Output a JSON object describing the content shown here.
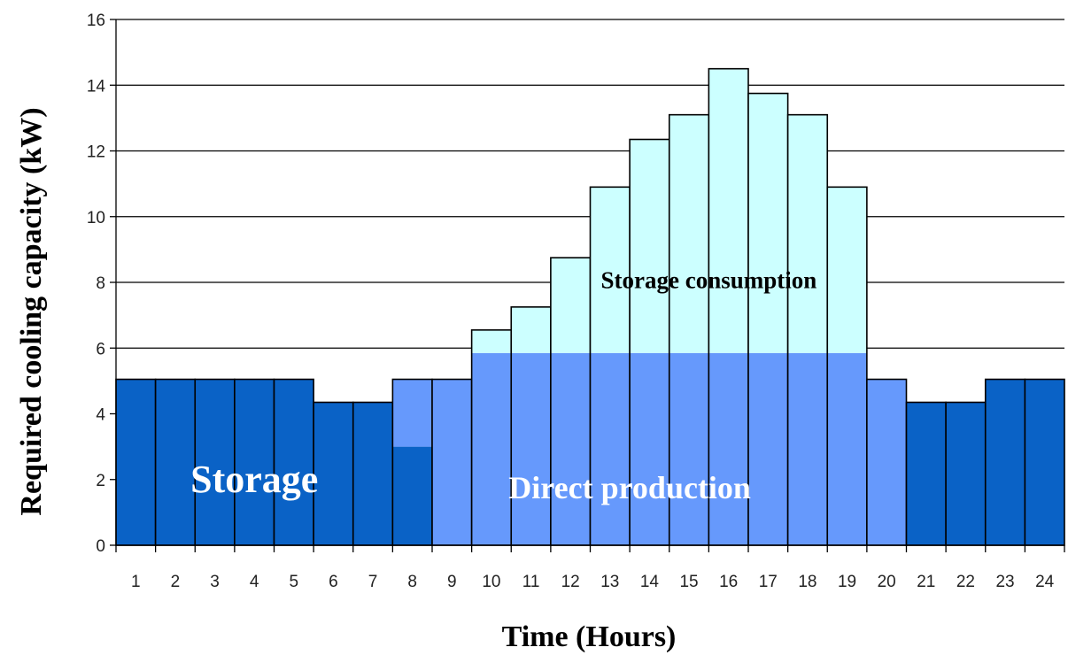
{
  "chart_data": {
    "type": "bar",
    "title": "",
    "xlabel": "Time (Hours)",
    "ylabel": "Required cooling capacity (kW)",
    "ylim": [
      0,
      16
    ],
    "yticks": [
      "0",
      "2",
      "4",
      "6",
      "8",
      "10",
      "12",
      "14",
      "16"
    ],
    "categories": [
      "1",
      "2",
      "3",
      "4",
      "5",
      "6",
      "7",
      "8",
      "9",
      "10",
      "11",
      "12",
      "13",
      "14",
      "15",
      "16",
      "17",
      "18",
      "19",
      "20",
      "21",
      "22",
      "23",
      "24"
    ],
    "series": [
      {
        "name": "Storage",
        "values": [
          5.05,
          5.05,
          5.05,
          5.05,
          5.05,
          4.35,
          4.35,
          3.0,
          0,
          0,
          0,
          0,
          0,
          0,
          0,
          0,
          0,
          0,
          0,
          0,
          4.35,
          4.35,
          5.05,
          5.05
        ]
      },
      {
        "name": "Direct production",
        "values": [
          0,
          0,
          0,
          0,
          0,
          0,
          0,
          2.05,
          5.05,
          5.85,
          5.85,
          5.85,
          5.85,
          5.85,
          5.85,
          5.85,
          5.85,
          5.85,
          5.85,
          5.05,
          0,
          0,
          0,
          0
        ]
      },
      {
        "name": "Storage consumption",
        "values": [
          0,
          0,
          0,
          0,
          0,
          0,
          0,
          0,
          0,
          0.7,
          1.4,
          2.9,
          5.05,
          6.5,
          7.25,
          8.65,
          7.9,
          7.25,
          5.05,
          0,
          0,
          0,
          0,
          0
        ]
      }
    ],
    "colors": {
      "Storage": "#0a62c6",
      "Direct production": "#6699fc",
      "Storage consumption": "#ccffff"
    },
    "grid": true,
    "legend": "none",
    "annotations": [
      {
        "text": "Storage",
        "x": "4",
        "y": 2.0
      },
      {
        "text": "Direct production",
        "x": "13.5",
        "y": 1.8
      },
      {
        "text": "Storage consumption",
        "x": "15.5",
        "y": 8.2
      }
    ]
  }
}
